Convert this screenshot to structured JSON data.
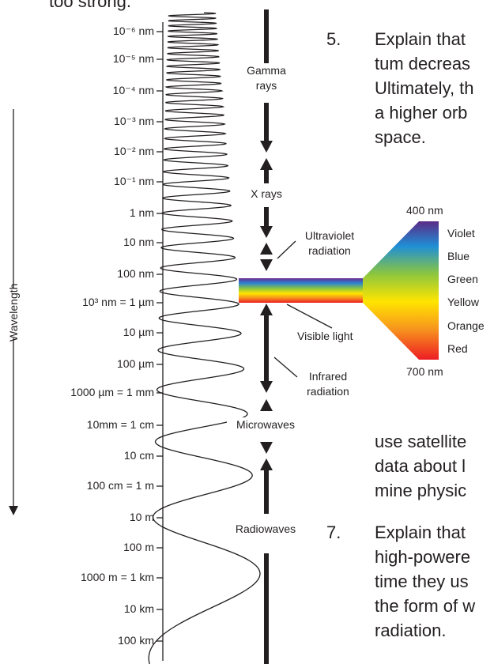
{
  "top_fragment": "too strong.",
  "axis": {
    "label": "Wavelength",
    "ticks": [
      "10⁻⁶ nm",
      "10⁻⁵ nm",
      "10⁻⁴ nm",
      "10⁻³ nm",
      "10⁻² nm",
      "10⁻¹ nm",
      "1 nm",
      "10 nm",
      "100 nm",
      "10³ nm = 1 µm",
      "10 µm",
      "100 µm",
      "1000 µm = 1 mm",
      "10mm = 1 cm",
      "10 cm",
      "100 cm = 1 m",
      "10 m",
      "100 m",
      "1000 m = 1 km",
      "10 km",
      "100 km"
    ]
  },
  "bands": {
    "gamma_line1": "Gamma",
    "gamma_line2": "rays",
    "xrays": "X rays",
    "uv_line1": "Ultraviolet",
    "uv_line2": "radiation",
    "visible": "Visible light",
    "ir_line1": "Infrared",
    "ir_line2": "radiation",
    "microwaves": "Microwaves",
    "radiowaves": "Radiowaves"
  },
  "spectrum": {
    "top_label": "400 nm",
    "bottom_label": "700 nm",
    "colors": [
      "Violet",
      "Blue",
      "Green",
      "Yellow",
      "Orange",
      "Red"
    ],
    "swatches": [
      "#5b2a86",
      "#1f8fd6",
      "#8cc63f",
      "#ffe500",
      "#f7941d",
      "#ed1c24"
    ]
  },
  "text": {
    "item5_number": "5.",
    "item5_lines": [
      "Explain that",
      "tum decreas",
      "Ultimately, th",
      "a higher orb",
      "space."
    ],
    "mid_lines": [
      "use satellite",
      "data about l",
      "mine physic"
    ],
    "item7_number": "7.",
    "item7_lines": [
      "Explain that",
      "high-powere",
      "time they us",
      "the form of w",
      "radiation."
    ]
  }
}
